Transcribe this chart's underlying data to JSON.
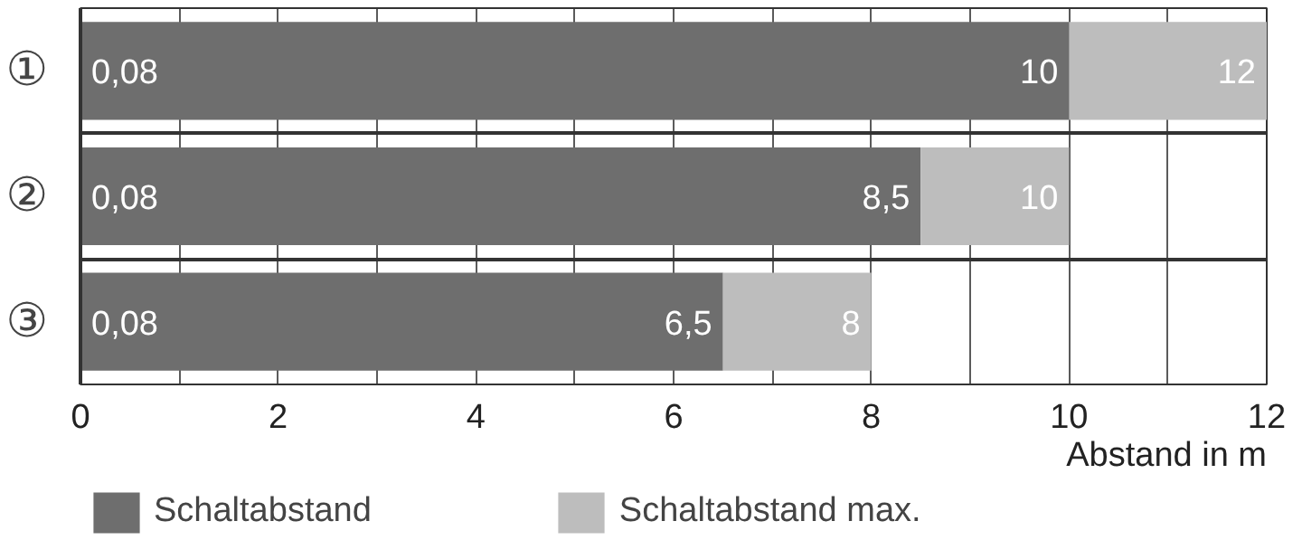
{
  "chart_data": {
    "type": "bar",
    "orientation": "horizontal",
    "stacked": true,
    "categories": [
      "①",
      "②",
      "③"
    ],
    "series": [
      {
        "name": "Schaltabstand",
        "color": "#6e6e6e",
        "values": [
          10,
          8.5,
          6.5
        ],
        "value_labels": [
          "10",
          "8,5",
          "6,5"
        ]
      },
      {
        "name": "Schaltabstand max.",
        "color": "#bdbdbd",
        "values": [
          2,
          1.5,
          1.5
        ]
      }
    ],
    "totals": [
      "12",
      "10",
      "8"
    ],
    "annotations": [
      "0,08",
      "0,08",
      "0,08"
    ],
    "xlabel": "Abstand in m",
    "xlim": [
      0,
      12
    ],
    "xticks": [
      0,
      {
        "value": 1,
        "label": null
      },
      2,
      {
        "value": 3,
        "label": null
      },
      4,
      {
        "value": 5,
        "label": null
      },
      6,
      {
        "value": 7,
        "label": null
      },
      8,
      {
        "value": 9,
        "label": null
      },
      10,
      {
        "value": 11,
        "label": null
      },
      12
    ],
    "grid": true,
    "legend": "bottom"
  }
}
